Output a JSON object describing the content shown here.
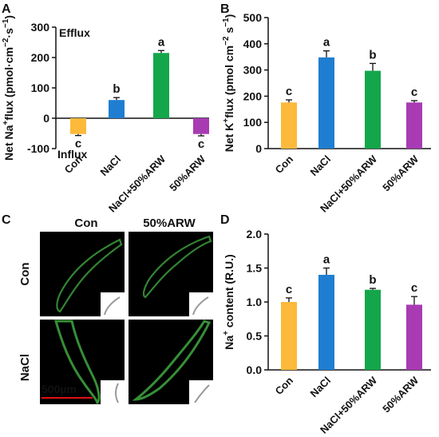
{
  "panels": {
    "a_label": "A",
    "b_label": "B",
    "c_label": "C",
    "d_label": "D"
  },
  "micrograph": {
    "col_con": "Con",
    "col_arw": "50%ARW",
    "row_con": "Con",
    "row_nacl": "NaCl",
    "scale_bar": "500µm",
    "scale_color": "#e01010",
    "fluor_color": "#3fa83f"
  },
  "chart_data": [
    {
      "type": "bar",
      "panel": "A",
      "categories": [
        "Con",
        "NaCl",
        "NaCl+50%ARW",
        "50%ARW"
      ],
      "values": [
        -52,
        60,
        215,
        -52
      ],
      "errors": [
        5,
        8,
        8,
        6
      ],
      "letters": [
        "c",
        "b",
        "a",
        "c"
      ],
      "colors": [
        "#fdb93a",
        "#1f7ed1",
        "#14a64a",
        "#a83bb3"
      ],
      "ylabel_main": "Net Na",
      "ylabel_sup": "+",
      "ylabel_units": "flux (pmol·cm",
      "ylabel_sup2": "−2",
      "ylabel_mid": "·s",
      "ylabel_sup3": "−1",
      "ylabel_end": ")",
      "ylim": [
        -100,
        300
      ],
      "yticks": [
        -100,
        0,
        100,
        200,
        300
      ],
      "efflux_label": "Efflux",
      "influx_label": "Influx"
    },
    {
      "type": "bar",
      "panel": "B",
      "categories": [
        "Con",
        "NaCl",
        "NaCl+50%ARW",
        "50%ARW"
      ],
      "values": [
        176,
        348,
        297,
        176
      ],
      "errors": [
        10,
        25,
        28,
        7
      ],
      "letters": [
        "c",
        "a",
        "b",
        "c"
      ],
      "colors": [
        "#fdb93a",
        "#1f7ed1",
        "#14a64a",
        "#a83bb3"
      ],
      "ylabel_main": "Net K",
      "ylabel_sup": "+",
      "ylabel_units": "flux (pmol cm",
      "ylabel_sup2": "−2",
      "ylabel_mid": " s",
      "ylabel_sup3": "−1",
      "ylabel_end": ")",
      "ylim": [
        0,
        500
      ],
      "yticks": [
        0,
        100,
        200,
        300,
        400,
        500
      ]
    },
    {
      "type": "bar",
      "panel": "D",
      "categories": [
        "Con",
        "NaCl",
        "NaCl+50%ARW",
        "50%ARW"
      ],
      "values": [
        1.0,
        1.4,
        1.18,
        0.96
      ],
      "errors": [
        0.06,
        0.1,
        0.02,
        0.12
      ],
      "letters": [
        "c",
        "a",
        "b",
        "c"
      ],
      "colors": [
        "#fdb93a",
        "#1f7ed1",
        "#14a64a",
        "#a83bb3"
      ],
      "ylabel_main": "Na",
      "ylabel_sup": "+",
      "ylabel_units": " content (R.U.)",
      "ylim": [
        0,
        2.0
      ],
      "yticks": [
        0.0,
        0.5,
        1.0,
        1.5,
        2.0
      ]
    }
  ]
}
